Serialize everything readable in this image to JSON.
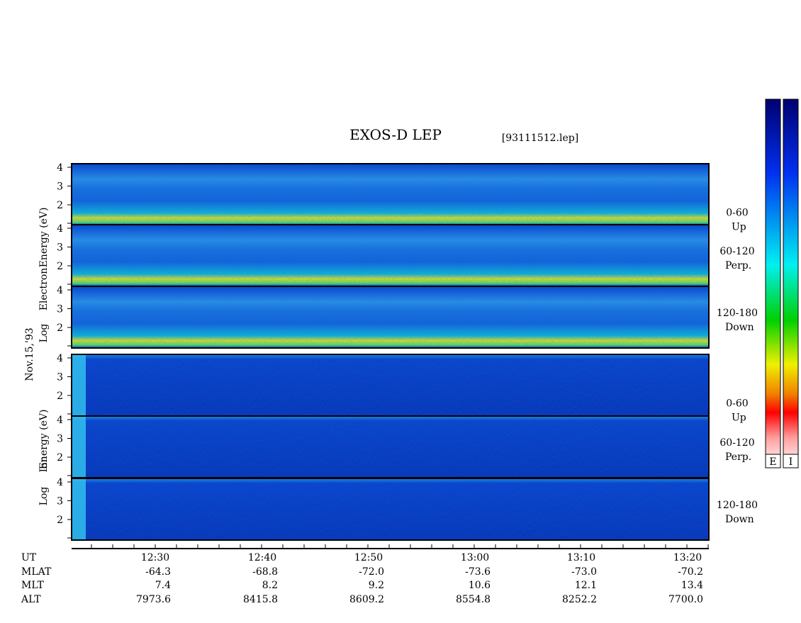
{
  "header": {
    "title": "EXOS-D LEP",
    "file": "[93111512.lep]"
  },
  "date": "Nov.15,'93",
  "electron_axis_label": [
    "Log",
    "Electron",
    "Energy (eV)"
  ],
  "ion_axis_label": [
    "Log",
    "Ion",
    "Energy (eV)"
  ],
  "panels": [
    {
      "group": "electron",
      "angle": "0-60",
      "direction": "Up",
      "yticks": [
        "4",
        "3",
        "2"
      ]
    },
    {
      "group": "electron",
      "angle": "60-120",
      "direction": "Perp.",
      "yticks": [
        "4",
        "3",
        "2"
      ]
    },
    {
      "group": "electron",
      "angle": "120-180",
      "direction": "Down",
      "yticks": [
        "4",
        "3",
        "2"
      ]
    },
    {
      "group": "ion",
      "angle": "0-60",
      "direction": "Up",
      "yticks": [
        "4",
        "3",
        "2"
      ]
    },
    {
      "group": "ion",
      "angle": "60-120",
      "direction": "Perp.",
      "yticks": [
        "4",
        "3",
        "2"
      ]
    },
    {
      "group": "ion",
      "angle": "120-180",
      "direction": "Down",
      "yticks": [
        "4",
        "3",
        "2"
      ]
    }
  ],
  "colorbars": [
    "E",
    "I"
  ],
  "time_axis": {
    "rows": [
      {
        "name": "UT",
        "values": [
          "12:30",
          "12:40",
          "12:50",
          "13:00",
          "13:10",
          "13:20"
        ]
      },
      {
        "name": "MLAT",
        "values": [
          "-64.3",
          "-68.8",
          "-72.0",
          "-73.6",
          "-73.0",
          "-70.2"
        ]
      },
      {
        "name": "MLT",
        "values": [
          "7.4",
          "8.2",
          "9.2",
          "10.6",
          "12.1",
          "13.4"
        ]
      },
      {
        "name": "ALT",
        "values": [
          "7973.6",
          "8415.8",
          "8609.2",
          "8554.8",
          "8252.2",
          "7700.0"
        ]
      }
    ]
  }
}
